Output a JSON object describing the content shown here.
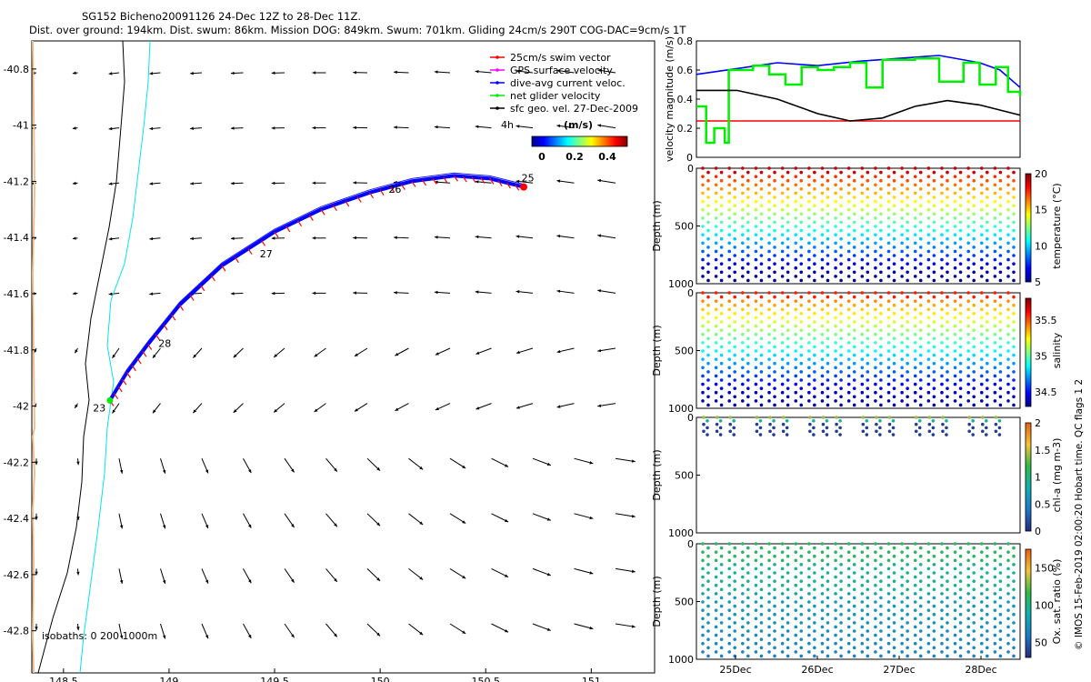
{
  "header": {
    "line1": "SG152 Bicheno20091126 24-Dec 12Z to 28-Dec 11Z.",
    "line2": "Dist. over ground: 194km. Dist. swum: 86km. Mission DOG: 849km. Swum: 701km. Gliding 24cm/s 290T COG-DAC=9cm/s 1T"
  },
  "credit": "© IMOS 15-Feb-2019 02:00:20 Hobart time. QC flags 1  2",
  "chart_data": [
    {
      "type": "scatter",
      "name": "track-map",
      "xlim": [
        148.35,
        151.3
      ],
      "ylim": [
        -42.95,
        -40.7
      ],
      "x_ticks": [
        148.5,
        149,
        149.5,
        150,
        150.5,
        151
      ],
      "x_tick_labels": [
        "148.5",
        "149",
        "149.5",
        "150",
        "150.5",
        "151"
      ],
      "y_ticks": [
        -40.8,
        -41,
        -41.2,
        -41.4,
        -41.6,
        -41.8,
        -42,
        -42.2,
        -42.4,
        -42.6,
        -42.8
      ],
      "y_tick_labels": [
        "-40.8",
        "-41",
        "-41.2",
        "-41.4",
        "-41.6",
        "-41.8",
        "-42",
        "-42.2",
        "-42.4",
        "-42.6",
        "-42.8"
      ],
      "legend": [
        {
          "label": "25cm/s swim vector",
          "color": "#ff0000"
        },
        {
          "label": "GPS surface velocity",
          "color": "#ff00ff"
        },
        {
          "label": "dive-avg current veloc.",
          "color": "#0000ff"
        },
        {
          "label": "net glider velocity",
          "color": "#00ee00"
        },
        {
          "label": "sfc geo. vel. 27-Dec-2009",
          "color": "#000000"
        }
      ],
      "colorbar": {
        "title": "(m/s)",
        "ticks": [
          "0",
          "0.2",
          "0.4"
        ],
        "range": [
          0,
          0.5
        ]
      },
      "lag_label": "4h",
      "isobaths_label": "isobaths: 0   200  1000m",
      "track_lon": [
        148.72,
        148.8,
        148.9,
        149.05,
        149.25,
        149.5,
        149.72,
        149.95,
        150.15,
        150.35,
        150.52,
        150.68
      ],
      "track_lat": [
        -41.98,
        -41.88,
        -41.78,
        -41.64,
        -41.5,
        -41.38,
        -41.3,
        -41.24,
        -41.2,
        -41.18,
        -41.19,
        -41.22
      ],
      "day_markers": [
        {
          "label": "25",
          "lon": 150.7,
          "lat": -41.2
        },
        {
          "label": "26",
          "lon": 150.07,
          "lat": -41.24
        },
        {
          "label": "27",
          "lon": 149.46,
          "lat": -41.47
        },
        {
          "label": "28",
          "lon": 148.98,
          "lat": -41.79
        },
        {
          "label": "23",
          "lon": 148.67,
          "lat": -42.02
        }
      ]
    },
    {
      "type": "line",
      "name": "velocity-panel",
      "ylabel": "velocity magnitude (m/s)",
      "xlim": [
        24.5,
        28.5
      ],
      "ylim": [
        0,
        0.8
      ],
      "y_ticks": [
        0,
        0.2,
        0.4,
        0.6,
        0.8
      ],
      "y_tick_labels": [
        "0",
        "0.2",
        "0.4",
        "0.6",
        "0.8"
      ],
      "series": [
        {
          "name": "swim speed 25cm/s",
          "color": "#ff0000",
          "x": [
            24.5,
            28.5
          ],
          "y": [
            0.25,
            0.25
          ]
        },
        {
          "name": "dive-avg current",
          "color": "#0000ff",
          "x": [
            24.5,
            25.0,
            25.5,
            26.0,
            26.5,
            27.0,
            27.5,
            28.0,
            28.25,
            28.5
          ],
          "y": [
            0.57,
            0.61,
            0.65,
            0.63,
            0.66,
            0.68,
            0.7,
            0.65,
            0.6,
            0.48
          ]
        },
        {
          "name": "net glider velocity",
          "color": "#00ee00",
          "x": [
            24.5,
            24.62,
            24.72,
            24.85,
            24.9,
            25.2,
            25.4,
            25.6,
            25.8,
            26.0,
            26.2,
            26.4,
            26.6,
            26.8,
            27.0,
            27.2,
            27.5,
            27.8,
            28.0,
            28.2,
            28.35,
            28.5
          ],
          "y": [
            0.35,
            0.1,
            0.2,
            0.1,
            0.6,
            0.63,
            0.57,
            0.5,
            0.62,
            0.6,
            0.62,
            0.65,
            0.48,
            0.67,
            0.67,
            0.68,
            0.52,
            0.65,
            0.5,
            0.62,
            0.45,
            0.42
          ]
        },
        {
          "name": "sfc geostrophic",
          "color": "#000000",
          "x": [
            24.5,
            25.0,
            25.5,
            26.0,
            26.4,
            26.8,
            27.2,
            27.6,
            28.0,
            28.5
          ],
          "y": [
            0.46,
            0.46,
            0.4,
            0.3,
            0.25,
            0.27,
            0.35,
            0.39,
            0.36,
            0.29
          ]
        }
      ]
    },
    {
      "type": "scatter",
      "name": "temperature-section",
      "ylabel": "Depth (m)",
      "y_ticks": [
        "0",
        "500",
        "1000"
      ],
      "colorbar": {
        "label": "temperature (°C)",
        "ticks": [
          "5",
          "10",
          "15",
          "20"
        ],
        "range": [
          5,
          20
        ]
      },
      "depth_range": [
        0,
        1000
      ],
      "dives_per_day": 6,
      "surface_value": 19.5,
      "deep_value": 5
    },
    {
      "type": "scatter",
      "name": "salinity-section",
      "ylabel": "Depth (m)",
      "y_ticks": [
        "0",
        "500",
        "1000"
      ],
      "colorbar": {
        "label": "salinity",
        "ticks": [
          "34.5",
          "35",
          "35.5"
        ],
        "range": [
          34.3,
          35.8
        ]
      },
      "depth_range": [
        0,
        1000
      ],
      "surface_value": 35.6,
      "deep_value": 34.4
    },
    {
      "type": "scatter",
      "name": "chl-section",
      "ylabel": "Depth (m)",
      "y_ticks": [
        "0",
        "500",
        "1000"
      ],
      "colorbar": {
        "label": "chl-a (mg m-3)",
        "ticks": [
          "0",
          "0.5",
          "1",
          "1.5",
          "2"
        ],
        "range": [
          0,
          2
        ]
      },
      "depth_range": [
        0,
        1000
      ],
      "sample_depth_max": 180
    },
    {
      "type": "scatter",
      "name": "oxygen-section",
      "ylabel": "Depth (m)",
      "y_ticks": [
        "0",
        "500",
        "1000"
      ],
      "x_tick_labels": [
        "25Dec",
        "26Dec",
        "27Dec",
        "28Dec"
      ],
      "colorbar": {
        "label": "Ox. sat. ratio (%)",
        "ticks": [
          "50",
          "100",
          "150"
        ],
        "range": [
          30,
          175
        ]
      },
      "depth_range": [
        0,
        1000
      ],
      "surface_value": 100,
      "deep_value": 60
    }
  ]
}
